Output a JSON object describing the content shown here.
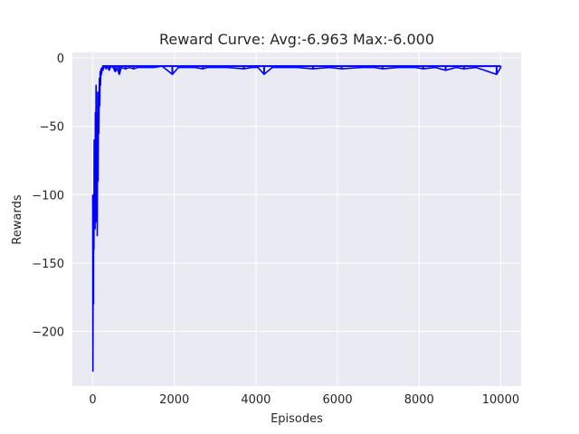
{
  "chart_data": {
    "type": "line",
    "title": "Reward Curve: Avg:-6.963 Max:-6.000",
    "xlabel": "Episodes",
    "ylabel": "Rewards",
    "xlim": [
      -500,
      10500
    ],
    "ylim": [
      -240,
      4
    ],
    "xticks": [
      0,
      2000,
      4000,
      6000,
      8000,
      10000
    ],
    "yticks": [
      0,
      -50,
      -100,
      -150,
      -200
    ],
    "xtick_labels": [
      "0",
      "2000",
      "4000",
      "6000",
      "8000",
      "10000"
    ],
    "ytick_labels": [
      "0",
      "−50",
      "−100",
      "−150",
      "−200"
    ],
    "grid": true,
    "colors": {
      "background": "#eaeaf2",
      "line": "#0000ff",
      "grid": "#ffffff"
    },
    "series": [
      {
        "baseline": -6,
        "x": [
          0,
          3,
          6,
          10,
          14,
          18,
          22,
          28,
          34,
          40,
          48,
          56,
          64,
          72,
          80,
          90,
          100,
          110,
          120,
          130,
          140,
          150,
          160,
          170,
          180,
          190,
          200,
          215,
          230,
          250,
          270,
          300,
          330,
          360,
          400,
          450,
          500,
          550,
          600,
          650,
          700,
          800,
          900,
          1000,
          1100,
          1200,
          1300,
          1500,
          1700,
          1950,
          2100,
          2500,
          2700,
          2800,
          3000,
          3300,
          3700,
          3900,
          4050,
          4200,
          4400,
          5000,
          5400,
          5800,
          6100,
          6600,
          6900,
          7100,
          7500,
          7900,
          8100,
          8400,
          8650,
          8900,
          9100,
          9400,
          9900,
          10000
        ],
        "values": [
          -100,
          -229,
          -200,
          -130,
          -110,
          -180,
          -100,
          -140,
          -60,
          -110,
          -80,
          -125,
          -40,
          -95,
          -20,
          -120,
          -50,
          -130,
          -25,
          -90,
          -30,
          -55,
          -15,
          -35,
          -10,
          -20,
          -8,
          -12,
          -7,
          -9,
          -6,
          -7,
          -8,
          -6,
          -9,
          -6,
          -7,
          -10,
          -8,
          -12,
          -7,
          -8,
          -7,
          -8,
          -7,
          -7,
          -7,
          -7,
          -6,
          -12,
          -7,
          -7,
          -8,
          -7,
          -7,
          -7,
          -8,
          -7,
          -7,
          -12,
          -7,
          -7,
          -8,
          -7,
          -8,
          -7,
          -7,
          -8,
          -7,
          -7,
          -8,
          -7,
          -9,
          -7,
          -8,
          -7,
          -12,
          -7
        ]
      }
    ]
  }
}
